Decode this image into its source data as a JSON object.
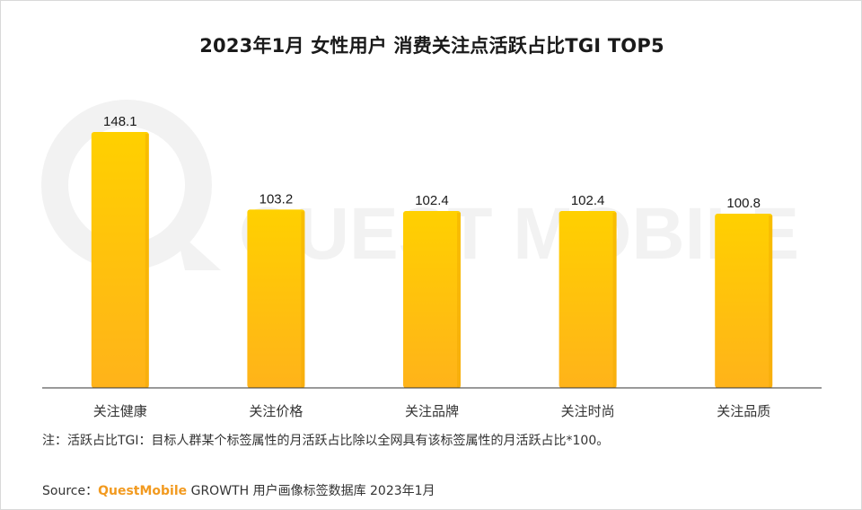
{
  "title": "2023年1月 女性用户 消费关注点活跃占比TGI TOP5",
  "note": "注：活跃占比TGI：目标人群某个标签属性的月活跃占比除以全网具有该标签属性的月活跃占比*100。",
  "source": {
    "label": "Source：",
    "brand": "QuestMobile",
    "text": " GROWTH 用户画像标签数据库 2023年1月"
  },
  "watermark": {
    "text": "QUEST MOBILE"
  },
  "colors": {
    "bar_top": "#ffd000",
    "bar_bottom": "#ffb31a",
    "axis": "#333333",
    "watermark": "#f2f2f2"
  },
  "chart_data": {
    "type": "bar",
    "title": "2023年1月 女性用户 消费关注点活跃占比TGI TOP5",
    "categories": [
      "关注健康",
      "关注价格",
      "关注品牌",
      "关注时尚",
      "关注品质"
    ],
    "values": [
      148.1,
      103.2,
      102.4,
      102.4,
      100.8
    ],
    "data_labels": [
      "148.1",
      "103.2",
      "102.4",
      "102.4",
      "100.8"
    ],
    "xlabel": "",
    "ylabel": "",
    "ylim": [
      0,
      148.1
    ],
    "grid": false,
    "legend": "none"
  }
}
